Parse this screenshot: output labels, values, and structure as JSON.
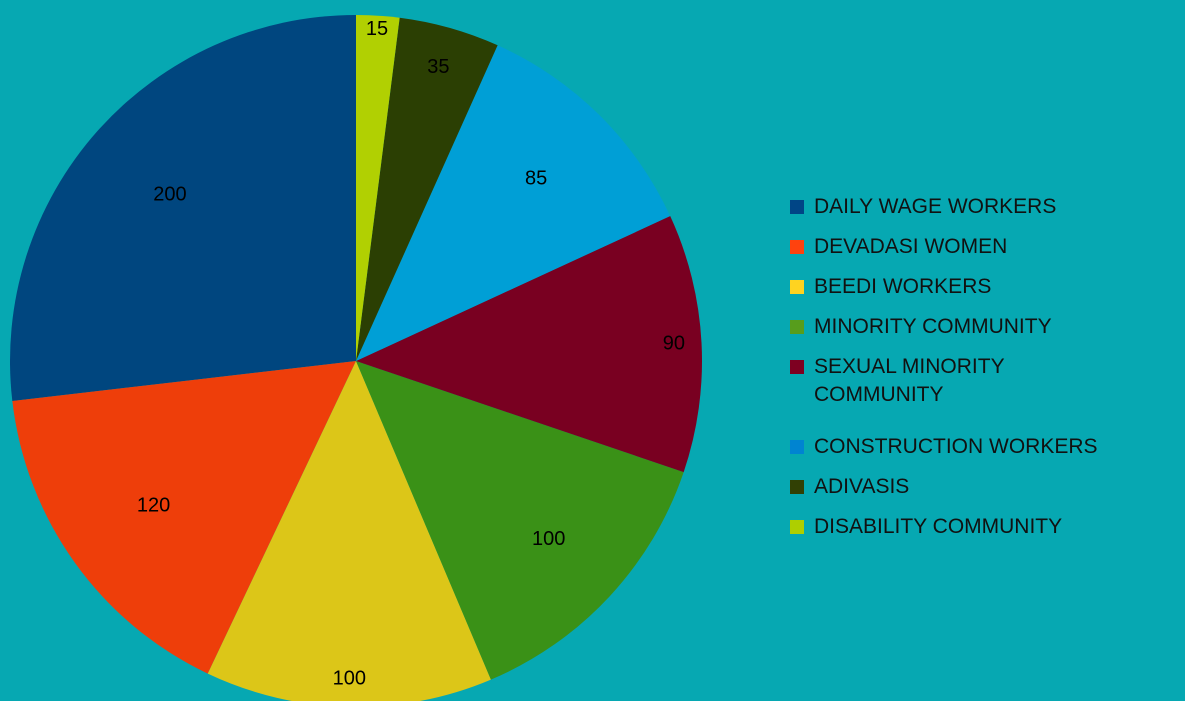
{
  "chart_data": {
    "type": "pie",
    "title": "",
    "legend_position": "right",
    "slices": [
      {
        "label": "DAILY WAGE WORKERS",
        "value": 200,
        "color": "#004586"
      },
      {
        "label": "DEVADASI WOMEN",
        "value": 120,
        "color": "#ff420e"
      },
      {
        "label": "BEEDI WORKERS",
        "value": 100,
        "color": "#ffd320"
      },
      {
        "label": "MINORITY COMMUNITY",
        "value": 100,
        "color": "#579d1c"
      },
      {
        "label": "SEXUAL MINORITY COMMUNITY",
        "value": 90,
        "color": "#7e0021"
      },
      {
        "label": "CONSTRUCTION WORKERS",
        "value": 85,
        "color": "#0084d1"
      },
      {
        "label": "ADIVASIS",
        "value": 35,
        "color": "#314004"
      },
      {
        "label": "DISABILITY COMMUNITY",
        "value": 15,
        "color": "#aecf00"
      }
    ],
    "slice_colors_rendered": {
      "DAILY WAGE WORKERS": "#00467f",
      "DEVADASI WOMEN": "#ee3e0a",
      "BEEDI WORKERS": "#dcc618",
      "MINORITY COMMUNITY": "#3a9117",
      "SEXUAL MINORITY COMMUNITY": "#790021",
      "CONSTRUCTION WORKERS": "#009fd6",
      "ADIVASIS": "#2b3f03",
      "DISABILITY COMMUNITY": "#b1d002"
    },
    "legend_swatch_colors": {
      "DAILY WAGE WORKERS": "#004586",
      "DEVADASI WOMEN": "#ff420e",
      "BEEDI WORKERS": "#ffd320",
      "MINORITY COMMUNITY": "#579d1c",
      "SEXUAL MINORITY COMMUNITY": "#7e0021",
      "CONSTRUCTION WORKERS": "#0084d1",
      "ADIVASIS": "#314004",
      "DISABILITY COMMUNITY": "#aecf00"
    }
  },
  "legend": {
    "items": [
      "DAILY WAGE WORKERS",
      "DEVADASI WOMEN",
      "BEEDI WORKERS",
      "MINORITY COMMUNITY",
      "SEXUAL MINORITY COMMUNITY",
      "CONSTRUCTION WORKERS",
      "ADIVASIS",
      "DISABILITY COMMUNITY"
    ]
  },
  "background_color": "#06a8b2"
}
